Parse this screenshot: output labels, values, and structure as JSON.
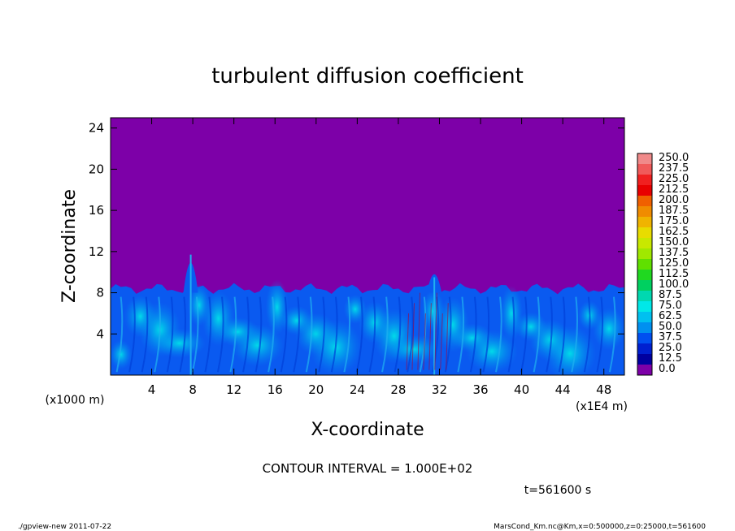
{
  "chart_data": {
    "type": "heatmap",
    "title": "turbulent diffusion coefficient",
    "xlabel": "X-coordinate",
    "ylabel": "Z-coordinate",
    "x_unit": "(x1E4 m)",
    "y_unit": "(x1000 m)",
    "xlim": [
      0,
      50
    ],
    "ylim": [
      0,
      25
    ],
    "x_ticks": [
      4,
      8,
      12,
      16,
      20,
      24,
      28,
      32,
      36,
      40,
      44,
      48
    ],
    "y_ticks": [
      4,
      8,
      12,
      16,
      20,
      24
    ],
    "background_value": 0.0,
    "colorbar_levels": [
      "250.0",
      "237.5",
      "225.0",
      "212.5",
      "200.0",
      "187.5",
      "175.0",
      "162.5",
      "150.0",
      "137.5",
      "125.0",
      "112.5",
      "100.0",
      "87.5",
      "75.0",
      "62.5",
      "50.0",
      "37.5",
      "25.0",
      "12.5",
      "0.0"
    ],
    "colorbar_colors": [
      "#f08a8a",
      "#f05a5a",
      "#f02020",
      "#e80000",
      "#f06000",
      "#f08c00",
      "#f0b400",
      "#e8dc00",
      "#c8e800",
      "#a0e800",
      "#60e000",
      "#20d820",
      "#00d060",
      "#00d8b0",
      "#00e8e8",
      "#00c0f0",
      "#0090f0",
      "#0050f0",
      "#0020d0",
      "#0000a0",
      "#7d00a8"
    ],
    "bands": [
      {
        "x0": 0,
        "x1": 50,
        "top_z": 8.4,
        "value": 50
      }
    ],
    "plumes": [
      {
        "x": 7.8,
        "top_z": 13.2
      },
      {
        "x": 31.5,
        "top_z": 11.0
      }
    ],
    "contour_interval_text": "CONTOUR INTERVAL = 1.000E+02",
    "time_text": "t=561600 s"
  },
  "footer": {
    "left": "./gpview-new   2011-07-22",
    "right": "MarsCond_Km.nc@Km,x=0:500000,z=0:25000,t=561600"
  }
}
